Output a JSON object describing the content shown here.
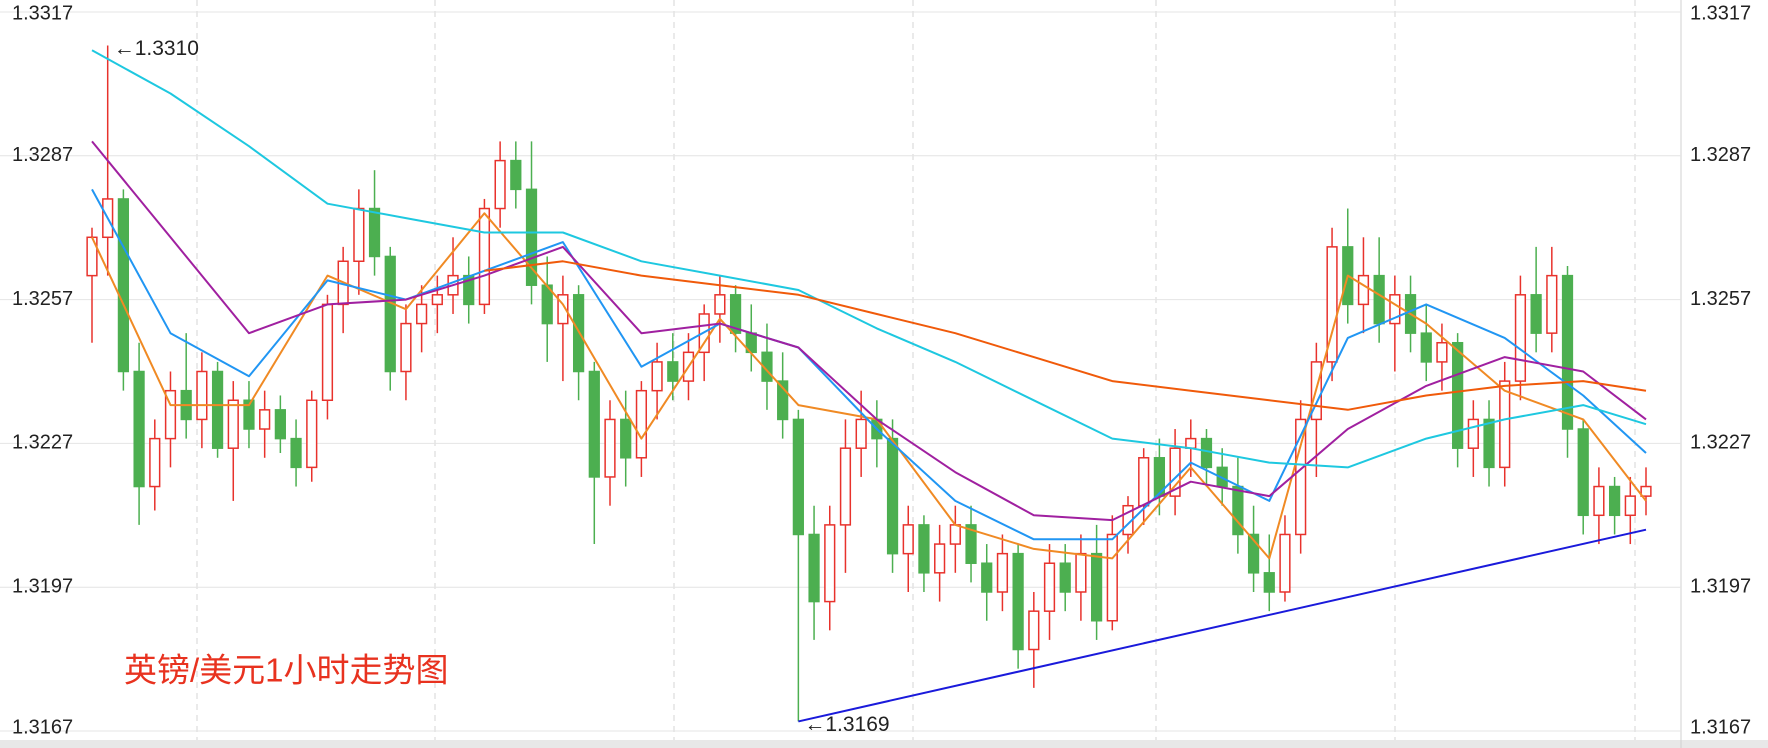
{
  "chart_data": {
    "type": "candlestick",
    "title": "英镑/美元1小时走势图",
    "ylim": [
      1.3167,
      1.3317
    ],
    "yticks": [
      1.3167,
      1.3197,
      1.3227,
      1.3257,
      1.3287,
      1.3317
    ],
    "grid": true,
    "up_color": "#e8322c",
    "down_color": "#4caf50",
    "ohlc": [
      [
        1.3262,
        1.3272,
        1.3248,
        1.327
      ],
      [
        1.327,
        1.331,
        1.3262,
        1.3278
      ],
      [
        1.3278,
        1.328,
        1.3238,
        1.3242
      ],
      [
        1.3242,
        1.3248,
        1.321,
        1.3218
      ],
      [
        1.3218,
        1.3232,
        1.3213,
        1.3228
      ],
      [
        1.3228,
        1.3242,
        1.3222,
        1.3238
      ],
      [
        1.3238,
        1.325,
        1.3228,
        1.3232
      ],
      [
        1.3232,
        1.3246,
        1.3226,
        1.3242
      ],
      [
        1.3242,
        1.3244,
        1.3224,
        1.3226
      ],
      [
        1.3226,
        1.324,
        1.3215,
        1.3236
      ],
      [
        1.3236,
        1.324,
        1.3226,
        1.323
      ],
      [
        1.323,
        1.3238,
        1.3224,
        1.3234
      ],
      [
        1.3234,
        1.3237,
        1.3225,
        1.3228
      ],
      [
        1.3228,
        1.3232,
        1.3218,
        1.3222
      ],
      [
        1.3222,
        1.3238,
        1.3219,
        1.3236
      ],
      [
        1.3236,
        1.3258,
        1.3232,
        1.3256
      ],
      [
        1.3256,
        1.3268,
        1.325,
        1.3265
      ],
      [
        1.3265,
        1.328,
        1.3258,
        1.3276
      ],
      [
        1.3276,
        1.3284,
        1.3262,
        1.3266
      ],
      [
        1.3266,
        1.3268,
        1.3238,
        1.3242
      ],
      [
        1.3242,
        1.3256,
        1.3236,
        1.3252
      ],
      [
        1.3252,
        1.326,
        1.3246,
        1.3256
      ],
      [
        1.3256,
        1.3262,
        1.325,
        1.3258
      ],
      [
        1.3258,
        1.327,
        1.3254,
        1.3262
      ],
      [
        1.3262,
        1.3266,
        1.3252,
        1.3256
      ],
      [
        1.3256,
        1.3278,
        1.3254,
        1.3276
      ],
      [
        1.3276,
        1.329,
        1.3272,
        1.3286
      ],
      [
        1.3286,
        1.329,
        1.3276,
        1.328
      ],
      [
        1.328,
        1.329,
        1.3256,
        1.326
      ],
      [
        1.326,
        1.3266,
        1.3244,
        1.3252
      ],
      [
        1.3252,
        1.3262,
        1.324,
        1.3258
      ],
      [
        1.3258,
        1.326,
        1.3236,
        1.3242
      ],
      [
        1.3242,
        1.3244,
        1.3206,
        1.322
      ],
      [
        1.322,
        1.3236,
        1.3214,
        1.3232
      ],
      [
        1.3232,
        1.3238,
        1.3218,
        1.3224
      ],
      [
        1.3224,
        1.324,
        1.322,
        1.3238
      ],
      [
        1.3238,
        1.3248,
        1.3232,
        1.3244
      ],
      [
        1.3244,
        1.325,
        1.3236,
        1.324
      ],
      [
        1.324,
        1.325,
        1.3236,
        1.3246
      ],
      [
        1.3246,
        1.3256,
        1.324,
        1.3254
      ],
      [
        1.3254,
        1.3262,
        1.3248,
        1.3258
      ],
      [
        1.3258,
        1.326,
        1.3246,
        1.325
      ],
      [
        1.325,
        1.3256,
        1.3242,
        1.3246
      ],
      [
        1.3246,
        1.3252,
        1.3234,
        1.324
      ],
      [
        1.324,
        1.3246,
        1.3228,
        1.3232
      ],
      [
        1.3232,
        1.3234,
        1.3169,
        1.3208
      ],
      [
        1.3208,
        1.3214,
        1.3186,
        1.3194
      ],
      [
        1.3194,
        1.3214,
        1.3188,
        1.321
      ],
      [
        1.321,
        1.3232,
        1.32,
        1.3226
      ],
      [
        1.3226,
        1.3238,
        1.322,
        1.3232
      ],
      [
        1.3232,
        1.3236,
        1.3222,
        1.3228
      ],
      [
        1.3228,
        1.3232,
        1.32,
        1.3204
      ],
      [
        1.3204,
        1.3214,
        1.3196,
        1.321
      ],
      [
        1.321,
        1.3212,
        1.3196,
        1.32
      ],
      [
        1.32,
        1.321,
        1.3194,
        1.3206
      ],
      [
        1.3206,
        1.3214,
        1.32,
        1.321
      ],
      [
        1.321,
        1.3214,
        1.3198,
        1.3202
      ],
      [
        1.3202,
        1.3206,
        1.319,
        1.3196
      ],
      [
        1.3196,
        1.3208,
        1.3192,
        1.3204
      ],
      [
        1.3204,
        1.3206,
        1.318,
        1.3184
      ],
      [
        1.3184,
        1.3196,
        1.3176,
        1.3192
      ],
      [
        1.3192,
        1.3206,
        1.3186,
        1.3202
      ],
      [
        1.3202,
        1.3206,
        1.3192,
        1.3196
      ],
      [
        1.3196,
        1.3208,
        1.319,
        1.3204
      ],
      [
        1.3204,
        1.321,
        1.3186,
        1.319
      ],
      [
        1.319,
        1.3212,
        1.3188,
        1.3208
      ],
      [
        1.3208,
        1.3216,
        1.3204,
        1.3214
      ],
      [
        1.3214,
        1.3226,
        1.321,
        1.3224
      ],
      [
        1.3224,
        1.3228,
        1.3212,
        1.3216
      ],
      [
        1.3216,
        1.323,
        1.3212,
        1.3226
      ],
      [
        1.3226,
        1.3232,
        1.322,
        1.3228
      ],
      [
        1.3228,
        1.323,
        1.3218,
        1.3222
      ],
      [
        1.3222,
        1.3226,
        1.3214,
        1.3218
      ],
      [
        1.3218,
        1.3224,
        1.3204,
        1.3208
      ],
      [
        1.3208,
        1.3214,
        1.3196,
        1.32
      ],
      [
        1.32,
        1.3208,
        1.3192,
        1.3196
      ],
      [
        1.3196,
        1.3212,
        1.3194,
        1.3208
      ],
      [
        1.3208,
        1.3236,
        1.3204,
        1.3232
      ],
      [
        1.3232,
        1.3248,
        1.322,
        1.3244
      ],
      [
        1.3244,
        1.3272,
        1.324,
        1.3268
      ],
      [
        1.3268,
        1.3276,
        1.3252,
        1.3256
      ],
      [
        1.3256,
        1.327,
        1.325,
        1.3262
      ],
      [
        1.3262,
        1.327,
        1.3248,
        1.3252
      ],
      [
        1.3252,
        1.3262,
        1.3242,
        1.3258
      ],
      [
        1.3258,
        1.3262,
        1.3246,
        1.325
      ],
      [
        1.325,
        1.3256,
        1.324,
        1.3244
      ],
      [
        1.3244,
        1.3252,
        1.3238,
        1.3248
      ],
      [
        1.3248,
        1.325,
        1.3222,
        1.3226
      ],
      [
        1.3226,
        1.3236,
        1.322,
        1.3232
      ],
      [
        1.3232,
        1.3236,
        1.3218,
        1.3222
      ],
      [
        1.3222,
        1.3244,
        1.3218,
        1.324
      ],
      [
        1.324,
        1.3262,
        1.3236,
        1.3258
      ],
      [
        1.3258,
        1.3268,
        1.3246,
        1.325
      ],
      [
        1.325,
        1.3268,
        1.3246,
        1.3262
      ],
      [
        1.3262,
        1.3264,
        1.3224,
        1.323
      ],
      [
        1.323,
        1.3232,
        1.3208,
        1.3212
      ],
      [
        1.3212,
        1.3222,
        1.3206,
        1.3218
      ],
      [
        1.3218,
        1.322,
        1.3208,
        1.3212
      ],
      [
        1.3212,
        1.322,
        1.3206,
        1.3216
      ],
      [
        1.3216,
        1.3222,
        1.3212,
        1.3218
      ]
    ],
    "ma_x": [
      0,
      5,
      10,
      15,
      20,
      25,
      30,
      35,
      40,
      45,
      50,
      55,
      60,
      65,
      70,
      75,
      80,
      85,
      90,
      95,
      99
    ],
    "series": [
      {
        "color": "#f08a24",
        "values": [
          1.327,
          1.3235,
          1.3235,
          1.3262,
          1.3255,
          1.3275,
          1.3256,
          1.3228,
          1.3253,
          1.3235,
          1.3232,
          1.321,
          1.3205,
          1.3203,
          1.3222,
          1.3203,
          1.3262,
          1.3252,
          1.3238,
          1.3232,
          1.3215
        ]
      },
      {
        "color": "#2196f3",
        "values": [
          1.328,
          1.325,
          1.3241,
          1.3261,
          1.3257,
          1.3263,
          1.3269,
          1.3243,
          1.3252,
          1.3247,
          1.323,
          1.3215,
          1.3207,
          1.3207,
          1.3223,
          1.3215,
          1.3249,
          1.3256,
          1.3249,
          1.3237,
          1.3225
        ]
      },
      {
        "color": "#a020a0",
        "values": [
          1.329,
          1.327,
          1.325,
          1.3256,
          1.3257,
          1.3262,
          1.3268,
          1.325,
          1.3252,
          1.3247,
          1.3232,
          1.3221,
          1.3212,
          1.3211,
          1.3219,
          1.3216,
          1.323,
          1.3239,
          1.3245,
          1.3242,
          1.3232
        ]
      },
      {
        "color": "#1ec8e0",
        "values": [
          1.3309,
          1.33,
          1.3289,
          1.3277,
          1.3274,
          1.3271,
          1.3271,
          1.3265,
          1.3262,
          1.3259,
          1.3251,
          1.3244,
          1.3236,
          1.3228,
          1.3226,
          1.3223,
          1.3222,
          1.3228,
          1.3232,
          1.3235,
          1.3231
        ]
      },
      {
        "color": "#f05a0a",
        "values": [
          null,
          null,
          null,
          null,
          null,
          1.3263,
          1.3265,
          1.3262,
          1.326,
          1.3258,
          1.3254,
          1.325,
          1.3245,
          1.324,
          1.3238,
          1.3236,
          1.3234,
          1.3237,
          1.3239,
          1.324,
          1.3238
        ]
      }
    ],
    "trendline": {
      "color": "#1a1adb",
      "x": [
        45,
        99
      ],
      "y": [
        1.3169,
        1.3209
      ]
    },
    "annotations": [
      {
        "text": "←1.3310",
        "x": 1,
        "y": 1.331
      },
      {
        "text": "←1.3169",
        "x": 45,
        "y": 1.3169
      }
    ]
  }
}
